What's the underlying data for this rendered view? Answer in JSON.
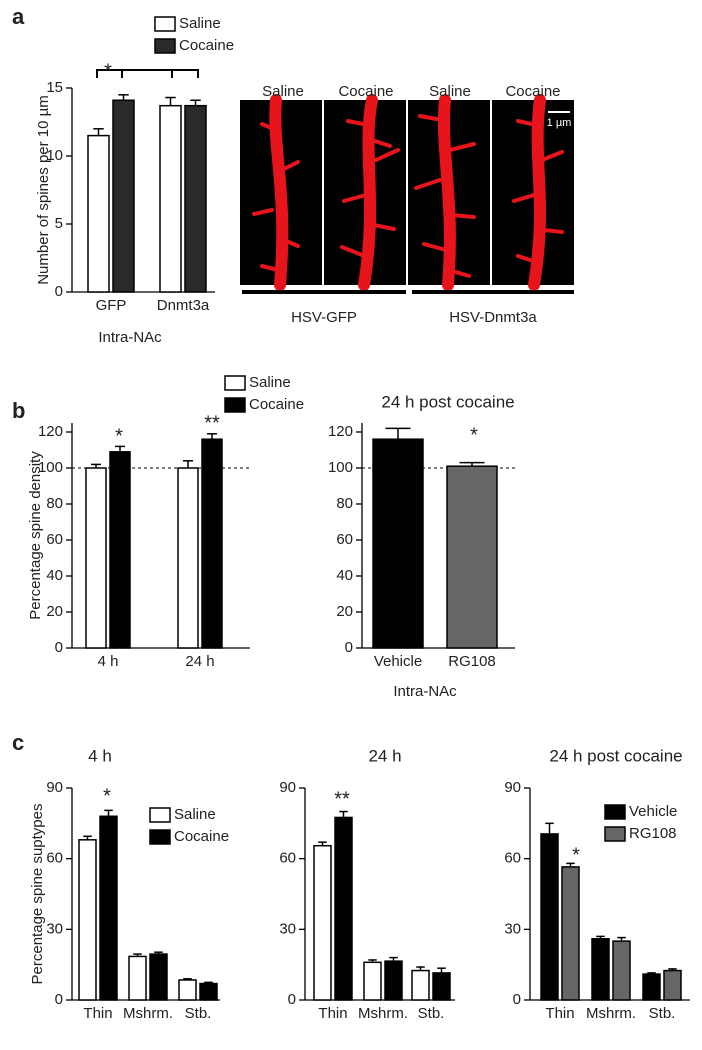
{
  "chart_data": [
    {
      "type": "bar",
      "panel": "a",
      "ylabel": "Number of spines per 10 µm",
      "xlabel": "Intra-NAc",
      "categories": [
        "GFP",
        "Dnmt3a"
      ],
      "series": [
        {
          "name": "Saline",
          "color": "#ffffff",
          "values": [
            11.5,
            13.7
          ],
          "errors": [
            0.5,
            0.6
          ]
        },
        {
          "name": "Cocaine",
          "color": "#2a2a2a",
          "values": [
            14.1,
            13.7
          ],
          "errors": [
            0.4,
            0.4
          ]
        }
      ],
      "ylim": [
        0,
        15
      ],
      "yticks": [
        0,
        5,
        10,
        15
      ],
      "annotations": [
        "*"
      ]
    },
    {
      "type": "bar",
      "panel": "b",
      "ylabel": "Percentage spine density",
      "categories": [
        "4 h",
        "24 h"
      ],
      "series": [
        {
          "name": "Saline",
          "color": "#ffffff",
          "values": [
            100,
            100
          ],
          "errors": [
            2,
            4
          ]
        },
        {
          "name": "Cocaine",
          "color": "#000000",
          "values": [
            109,
            116
          ],
          "errors": [
            3,
            3
          ]
        }
      ],
      "ylim": [
        0,
        125
      ],
      "yticks": [
        0,
        20,
        40,
        60,
        80,
        100,
        120
      ],
      "reference_line": 100,
      "annotations": [
        "*",
        "**"
      ]
    },
    {
      "type": "bar",
      "title": "24 h post cocaine",
      "xlabel": "Intra-NAc",
      "categories": [
        "Vehicle",
        "RG108"
      ],
      "values": [
        116,
        101
      ],
      "errors": [
        6,
        2
      ],
      "colors": [
        "#000000",
        "#666666"
      ],
      "ylim": [
        0,
        125
      ],
      "yticks": [
        0,
        20,
        40,
        60,
        80,
        100,
        120
      ],
      "reference_line": 100,
      "annotations": [
        "*"
      ]
    },
    {
      "type": "bar",
      "panel": "c",
      "title": "4 h",
      "ylabel": "Percentage spine suptypes",
      "categories": [
        "Thin",
        "Mshrm.",
        "Stb."
      ],
      "series": [
        {
          "name": "Saline",
          "color": "#ffffff",
          "values": [
            68,
            18.5,
            8.5
          ],
          "errors": [
            1.5,
            1,
            0.5
          ]
        },
        {
          "name": "Cocaine",
          "color": "#000000",
          "values": [
            78,
            19.5,
            7
          ],
          "errors": [
            2.5,
            0.8,
            0.5
          ]
        }
      ],
      "ylim": [
        0,
        90
      ],
      "yticks": [
        0,
        30,
        60,
        90
      ],
      "annotations": [
        "*"
      ]
    },
    {
      "type": "bar",
      "title": "24 h",
      "categories": [
        "Thin",
        "Mshrm.",
        "Stb."
      ],
      "series": [
        {
          "values": [
            65.5,
            16,
            12.5
          ],
          "errors": [
            1.5,
            1,
            1.5
          ],
          "color": "#ffffff"
        },
        {
          "values": [
            77.5,
            16.5,
            11.5
          ],
          "errors": [
            2.5,
            1.5,
            2
          ],
          "color": "#000000"
        }
      ],
      "ylim": [
        0,
        90
      ],
      "yticks": [
        0,
        30,
        60,
        90
      ],
      "annotations": [
        "**"
      ]
    },
    {
      "type": "bar",
      "title": "24 h post cocaine",
      "categories": [
        "Thin",
        "Mshrm.",
        "Stb."
      ],
      "series": [
        {
          "name": "Vehicle",
          "color": "#000000",
          "values": [
            70.5,
            26,
            11
          ],
          "errors": [
            4.5,
            1,
            0.5
          ]
        },
        {
          "name": "RG108",
          "color": "#666666",
          "values": [
            56.5,
            25,
            12.5
          ],
          "errors": [
            1.5,
            1.5,
            0.7
          ]
        }
      ],
      "ylim": [
        0,
        90
      ],
      "yticks": [
        0,
        30,
        60,
        90
      ],
      "annotations": [
        "*"
      ]
    }
  ],
  "micrographs": {
    "labels": [
      "Saline",
      "Cocaine",
      "Saline",
      "Cocaine"
    ],
    "scale_bar": "1 µm",
    "groups": [
      "HSV-GFP",
      "HSV-Dnmt3a"
    ]
  }
}
